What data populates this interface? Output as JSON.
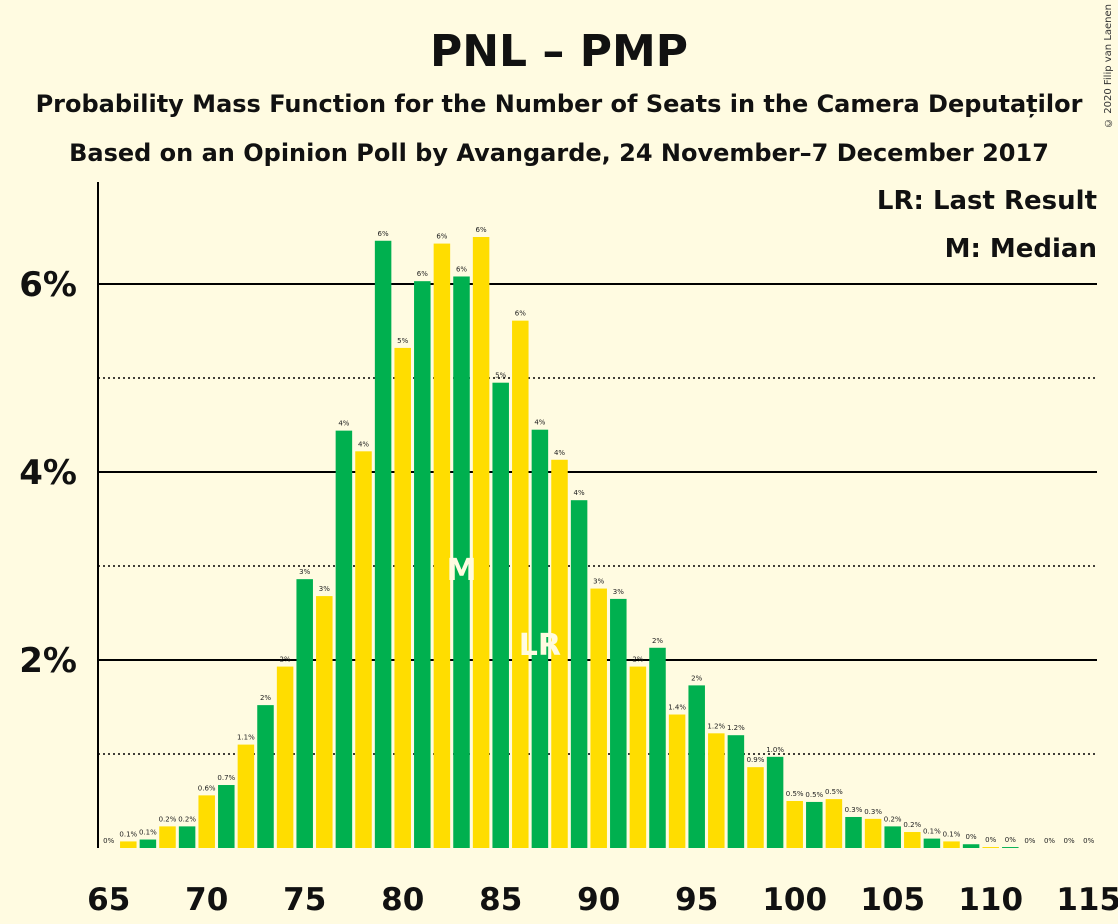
{
  "chart_data": {
    "type": "bar",
    "title": "PNL – PMP",
    "subtitle": "Probability Mass Function for the Number of Seats in the Camera Deputaților",
    "subtitle2": "Based on an Opinion Poll by Avangarde, 24 November–7 December 2017",
    "copyright": "© 2020 Filip van Laenen",
    "legend": {
      "position": "top-right",
      "lr": "LR: Last Result",
      "median": "M: Median"
    },
    "x": [
      65,
      66,
      67,
      68,
      69,
      70,
      71,
      72,
      73,
      74,
      75,
      76,
      77,
      78,
      79,
      80,
      81,
      82,
      83,
      84,
      85,
      86,
      87,
      88,
      89,
      90,
      91,
      92,
      93,
      94,
      95,
      96,
      97,
      98,
      99,
      100,
      101,
      102,
      103,
      104,
      105,
      106,
      107,
      108,
      109,
      110,
      111,
      112,
      113,
      114,
      115
    ],
    "values": [
      0.0,
      0.07,
      0.09,
      0.23,
      0.23,
      0.56,
      0.67,
      1.1,
      1.52,
      1.93,
      2.86,
      2.68,
      4.44,
      4.22,
      6.46,
      5.32,
      6.03,
      6.43,
      6.08,
      6.5,
      4.95,
      5.61,
      4.45,
      4.13,
      3.7,
      2.76,
      2.65,
      1.93,
      2.13,
      1.42,
      1.73,
      1.22,
      1.2,
      0.86,
      0.97,
      0.5,
      0.49,
      0.52,
      0.33,
      0.31,
      0.23,
      0.17,
      0.1,
      0.07,
      0.04,
      0.01,
      0.01,
      0.0,
      0.0,
      0.0,
      0.0
    ],
    "labels": [
      "0%",
      "0.1%",
      "0.1%",
      "0.2%",
      "0.2%",
      "0.6%",
      "0.7%",
      "1.1%",
      "2%",
      "2%",
      "3%",
      "3%",
      "4%",
      "4%",
      "6%",
      "5%",
      "6%",
      "6%",
      "6%",
      "6%",
      "5%",
      "6%",
      "4%",
      "4%",
      "4%",
      "3%",
      "3%",
      "2%",
      "2%",
      "1.4%",
      "2%",
      "1.2%",
      "1.2%",
      "0.9%",
      "1.0%",
      "0.5%",
      "0.5%",
      "0.5%",
      "0.3%",
      "0.3%",
      "0.2%",
      "0.2%",
      "0.1%",
      "0.1%",
      "0%",
      "0%",
      "0%",
      "0%",
      "0%",
      "0%",
      "0%"
    ],
    "xticks": [
      "65",
      "70",
      "75",
      "80",
      "85",
      "90",
      "95",
      "100",
      "105",
      "110",
      "115"
    ],
    "yticks": [
      {
        "value": 2,
        "label": "2%"
      },
      {
        "value": 4,
        "label": "4%"
      },
      {
        "value": 6,
        "label": "6%"
      }
    ],
    "ylim": [
      0,
      7.05
    ],
    "median_seat": 83,
    "median_label": "M",
    "last_result_seat": 87,
    "last_result_label": "LR",
    "colors": {
      "green": "#00B04F",
      "yellow": "#FFDD00",
      "background": "#FFFBE1",
      "marker_text": "#FFFBE1"
    }
  }
}
